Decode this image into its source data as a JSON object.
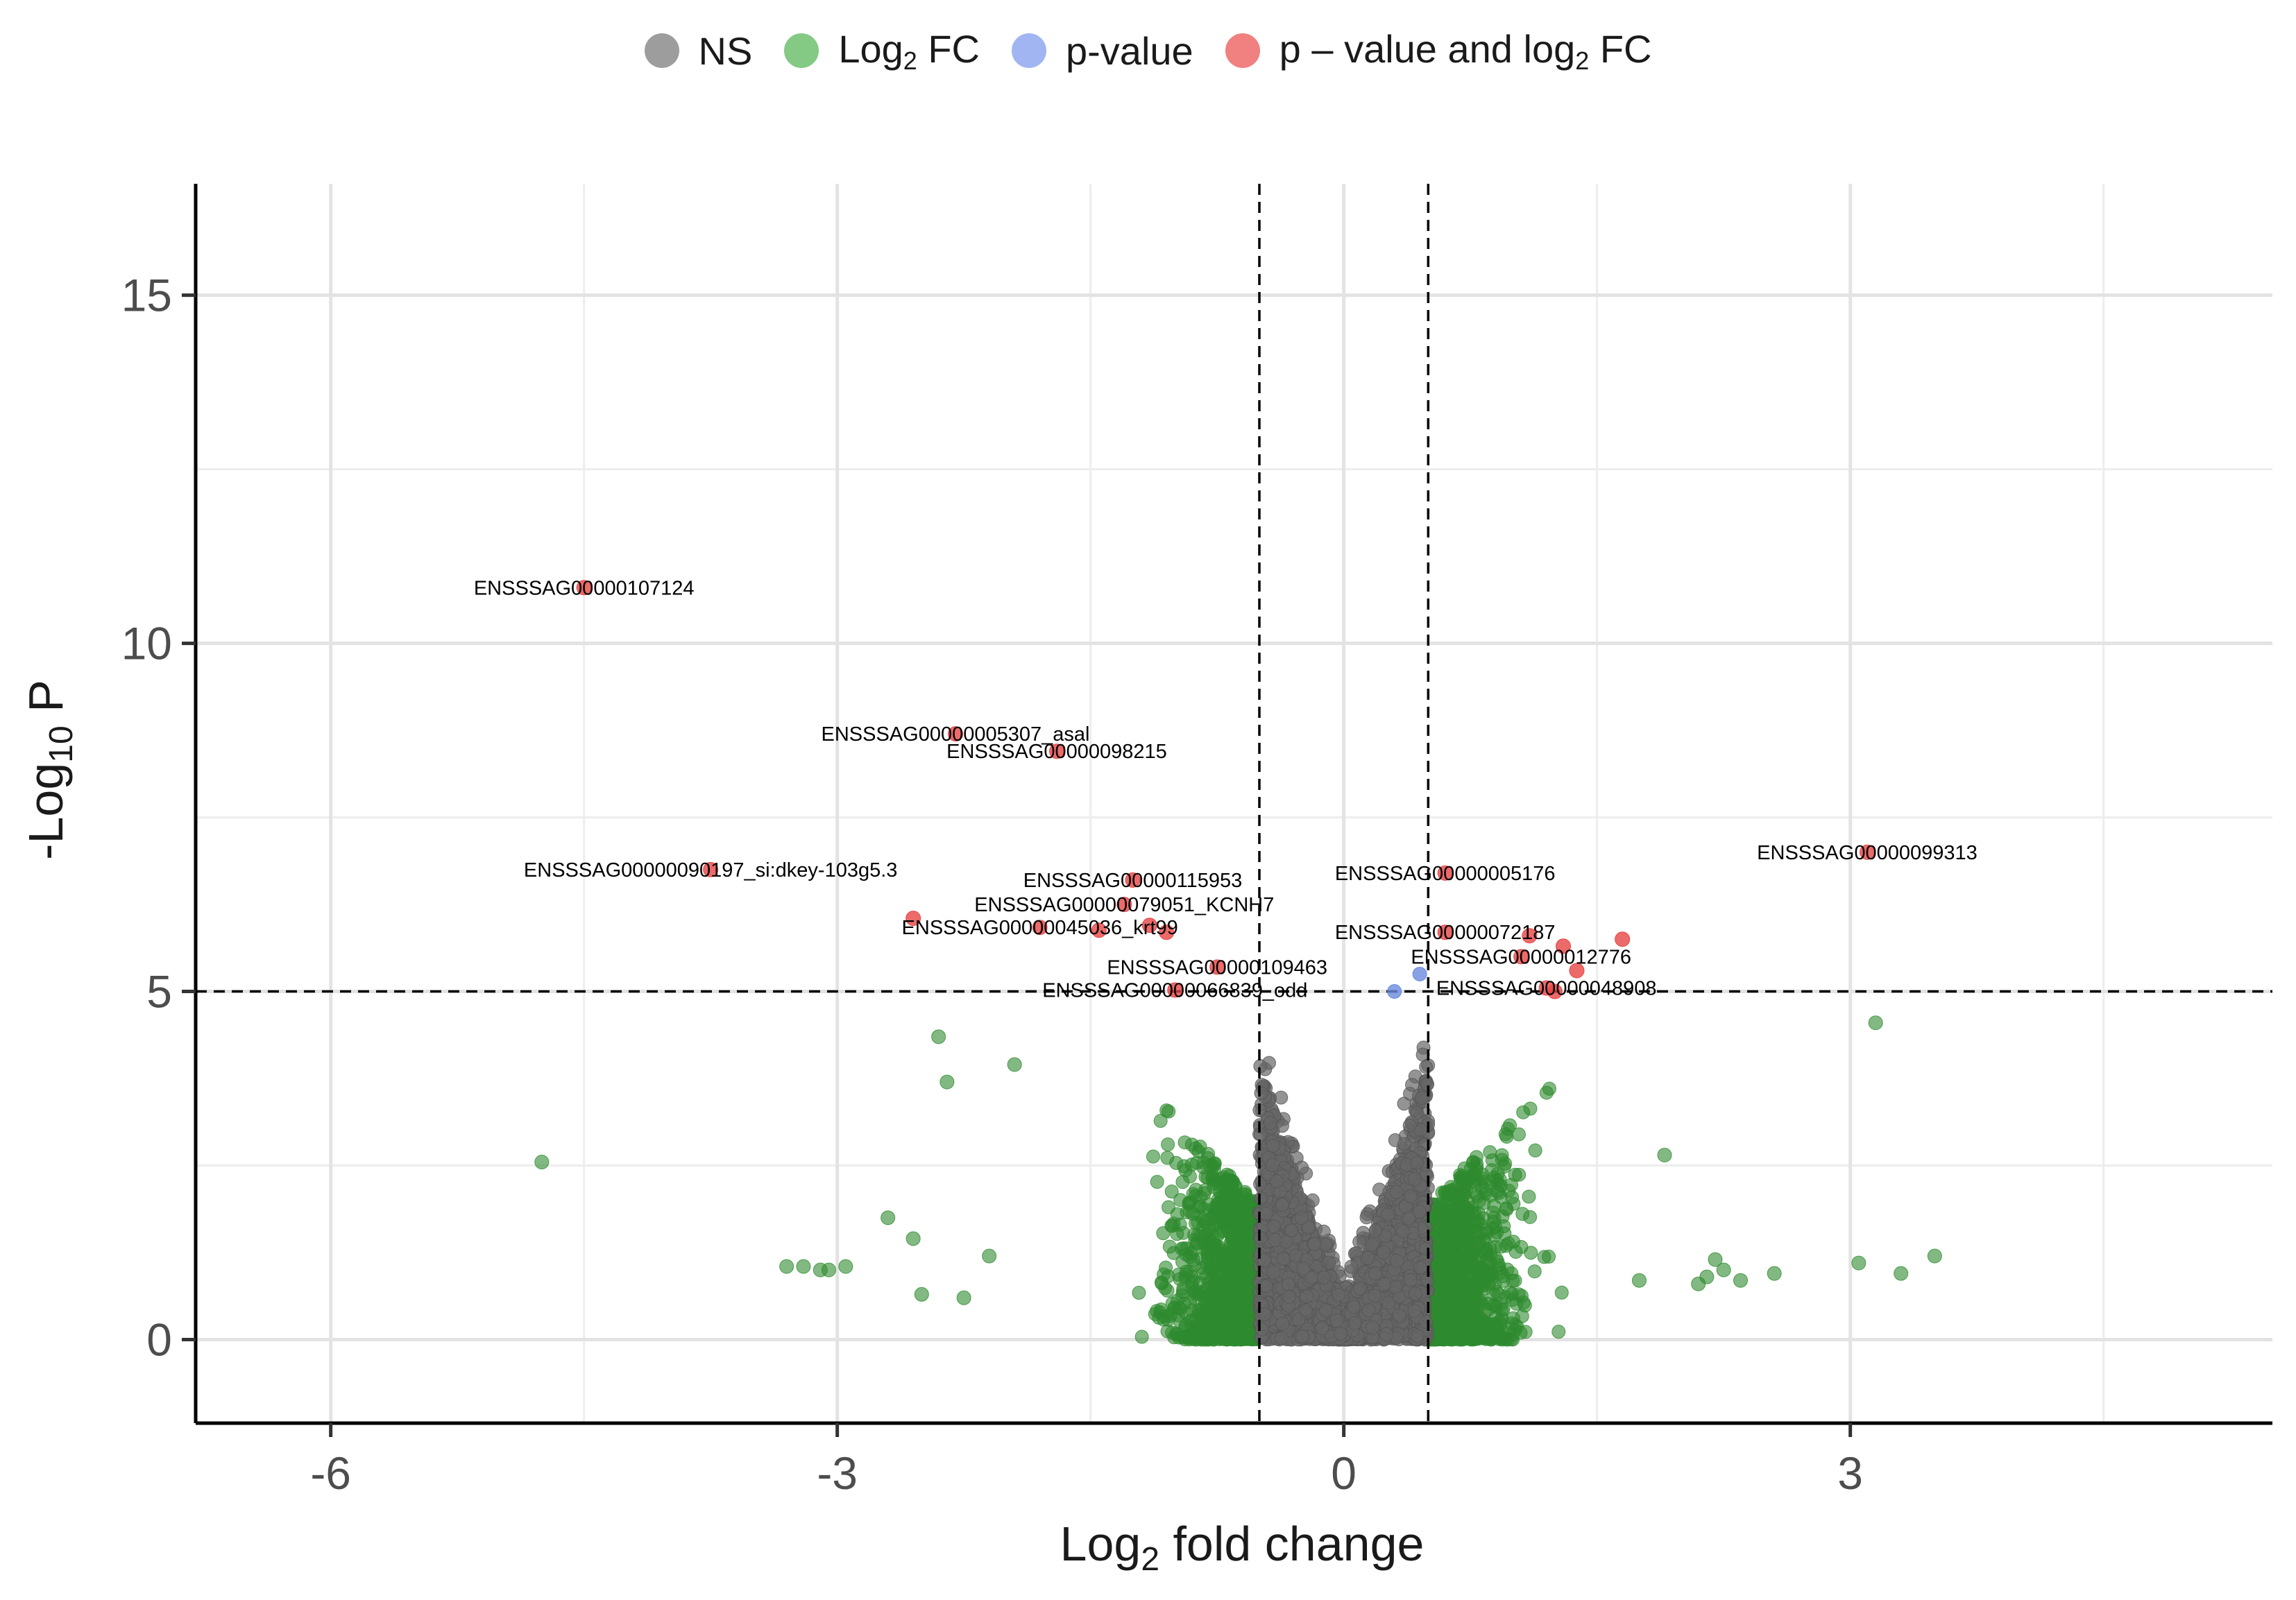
{
  "chart_data": {
    "type": "scatter",
    "title": "",
    "xlabel": "Log2 fold change",
    "ylabel": "-Log10 P",
    "xlim": [
      -6.8,
      5.5
    ],
    "ylim": [
      -1.2,
      16.6
    ],
    "xticks": [
      -6,
      -3,
      0,
      3
    ],
    "yticks": [
      0,
      5,
      10,
      15
    ],
    "xtick_labels": [
      "-6",
      "-3",
      "0",
      "3"
    ],
    "ytick_labels": [
      "0",
      "5",
      "10",
      "15"
    ],
    "fc_cutoff": 0.5,
    "p_cutoff": 5,
    "colors": {
      "NS": "#666666",
      "Log2 FC": "#2e8b2e",
      "p-value": "#6b8be0",
      "p-value and log2 FC": "#e84545"
    },
    "legend": [
      {
        "key": "NS",
        "text": "NS",
        "color": "#8c8c8c"
      },
      {
        "key": "Log2 FC",
        "text": "Log2 FC",
        "color": "#6fbf6f"
      },
      {
        "key": "p-value",
        "text": "p-value",
        "color": "#8fa8ee"
      },
      {
        "key": "p-value and log2 FC",
        "text": "p – value and log2 FC",
        "color": "#ee6a6a"
      }
    ],
    "labeled_points": [
      {
        "label": "ENSSSAG00000107124",
        "x": -4.5,
        "y": 10.8
      },
      {
        "label": "ENSSSAG00000005307_asal",
        "x": -2.3,
        "y": 8.7
      },
      {
        "label": "ENSSSAG00000098215",
        "x": -1.7,
        "y": 8.45
      },
      {
        "label": "ENSSSAG00000090197_si:dkey-103g5.3",
        "x": -3.75,
        "y": 6.75
      },
      {
        "label": "ENSSSAG00000115953",
        "x": -1.25,
        "y": 6.6
      },
      {
        "label": "ENSSSAG00000079051_KCNH7",
        "x": -1.3,
        "y": 6.25
      },
      {
        "label": "ENSSSAG00000045036_krt99",
        "x": -1.8,
        "y": 5.92
      },
      {
        "label": "ENSSSAG00000109463",
        "x": -0.75,
        "y": 5.35
      },
      {
        "label": "ENSSSAG00000066839_odd",
        "x": -1.0,
        "y": 5.02
      },
      {
        "label": "ENSSSAG00000005176",
        "x": 0.6,
        "y": 6.7
      },
      {
        "label": "ENSSSAG00000099313",
        "x": 3.1,
        "y": 7.0
      },
      {
        "label": "ENSSSAG00000072187",
        "x": 0.6,
        "y": 5.85
      },
      {
        "label": "ENSSSAG00000012776",
        "x": 1.05,
        "y": 5.5
      },
      {
        "label": "ENSSSAG00000048908",
        "x": 1.2,
        "y": 5.05
      }
    ],
    "other_significant": [
      {
        "x": -2.55,
        "y": 6.05
      },
      {
        "x": -1.45,
        "y": 5.88
      },
      {
        "x": -1.15,
        "y": 5.95
      },
      {
        "x": -1.05,
        "y": 5.85
      },
      {
        "x": 1.1,
        "y": 5.8
      },
      {
        "x": 1.3,
        "y": 5.65
      },
      {
        "x": 1.65,
        "y": 5.75
      },
      {
        "x": 1.38,
        "y": 5.3
      },
      {
        "x": 1.25,
        "y": 5.0
      }
    ],
    "pvalue_only": [
      {
        "x": 0.45,
        "y": 5.25
      },
      {
        "x": 0.3,
        "y": 5.0
      }
    ],
    "log2fc_outliers": [
      {
        "x": -4.75,
        "y": 2.55
      },
      {
        "x": -3.3,
        "y": 1.05
      },
      {
        "x": -3.2,
        "y": 1.05
      },
      {
        "x": -3.1,
        "y": 1.0
      },
      {
        "x": -2.95,
        "y": 1.05
      },
      {
        "x": -2.7,
        "y": 1.75
      },
      {
        "x": -2.55,
        "y": 1.45
      },
      {
        "x": -2.5,
        "y": 0.65
      },
      {
        "x": -2.25,
        "y": 0.6
      },
      {
        "x": -2.1,
        "y": 1.2
      },
      {
        "x": -2.4,
        "y": 4.35
      },
      {
        "x": -2.35,
        "y": 3.7
      },
      {
        "x": -1.95,
        "y": 3.95
      },
      {
        "x": -3.05,
        "y": 1.0
      },
      {
        "x": 2.2,
        "y": 1.15
      },
      {
        "x": 2.25,
        "y": 1.0
      },
      {
        "x": 2.15,
        "y": 0.9
      },
      {
        "x": 2.1,
        "y": 0.8
      },
      {
        "x": 2.55,
        "y": 0.95
      },
      {
        "x": 3.05,
        "y": 1.1
      },
      {
        "x": 3.3,
        "y": 0.95
      },
      {
        "x": 3.5,
        "y": 1.2
      },
      {
        "x": 3.15,
        "y": 4.55
      },
      {
        "x": 1.9,
        "y": 2.65
      },
      {
        "x": 1.75,
        "y": 0.85
      },
      {
        "x": 2.35,
        "y": 0.85
      }
    ]
  }
}
